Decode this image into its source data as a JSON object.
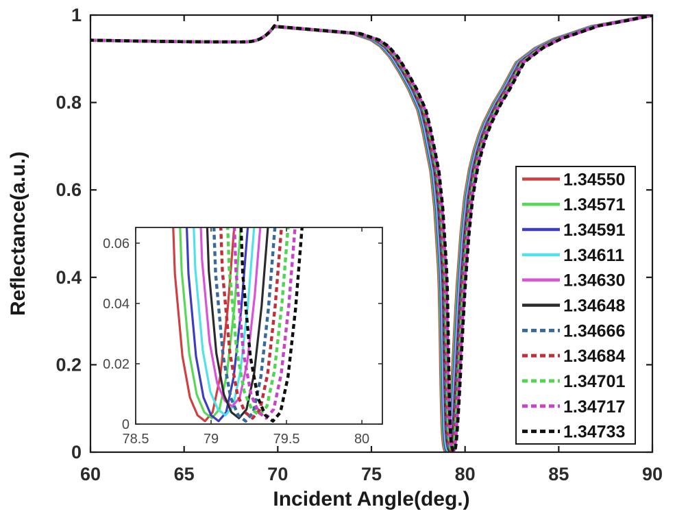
{
  "figure": {
    "background": "#ffffff",
    "axis_color": "#1a1a1a",
    "tick_label_color": "#2b2b2b",
    "inset_label_color": "#474747"
  },
  "chart_data": {
    "type": "line",
    "title": "",
    "xlabel": "Incident Angle(deg.)",
    "ylabel": "Reflectance(a.u.)",
    "xlim": [
      60,
      90
    ],
    "ylim": [
      0,
      1
    ],
    "xticks": [
      "60",
      "65",
      "70",
      "75",
      "80",
      "85",
      "90"
    ],
    "xtick_values": [
      60,
      65,
      70,
      75,
      80,
      85,
      90
    ],
    "yticks": [
      "0",
      "0.2",
      "0.4",
      "0.6",
      "0.8",
      "1"
    ],
    "ytick_values": [
      0,
      0.2,
      0.4,
      0.6,
      0.8,
      1
    ],
    "grid": false,
    "legend_position": "right-middle",
    "series": [
      {
        "name": "1.34550",
        "color": "#cf4141",
        "line_style": "solid",
        "resonance_deg": 78.96,
        "min_reflectance": 0.001
      },
      {
        "name": "1.34571",
        "color": "#57d957",
        "line_style": "solid",
        "resonance_deg": 79.005,
        "min_reflectance": 0.002
      },
      {
        "name": "1.34591",
        "color": "#3b3ec2",
        "line_style": "solid",
        "resonance_deg": 79.05,
        "min_reflectance": 0.001
      },
      {
        "name": "1.34611",
        "color": "#4fe3e8",
        "line_style": "solid",
        "resonance_deg": 79.095,
        "min_reflectance": 0.003
      },
      {
        "name": "1.34630",
        "color": "#da52da",
        "line_style": "solid",
        "resonance_deg": 79.14,
        "min_reflectance": 0.006
      },
      {
        "name": "1.34648",
        "color": "#2b2b2b",
        "line_style": "solid",
        "resonance_deg": 79.185,
        "min_reflectance": 0.002
      },
      {
        "name": "1.34666",
        "color": "#37699c",
        "line_style": "dashed",
        "resonance_deg": 79.23,
        "min_reflectance": 0.001
      },
      {
        "name": "1.34684",
        "color": "#c22f38",
        "line_style": "dashed",
        "resonance_deg": 79.275,
        "min_reflectance": 0.002
      },
      {
        "name": "1.34701",
        "color": "#4fd64f",
        "line_style": "dashed",
        "resonance_deg": 79.32,
        "min_reflectance": 0.003
      },
      {
        "name": "1.34717",
        "color": "#ca41ca",
        "line_style": "dashed",
        "resonance_deg": 79.365,
        "min_reflectance": 0.002
      },
      {
        "name": "1.34733",
        "color": "#101010",
        "line_style": "dashed",
        "resonance_deg": 79.41,
        "min_reflectance": 0.001
      }
    ],
    "curve_model": {
      "baseline_start": 0.9425,
      "baseline_sag": 0.004,
      "sag_end": 68,
      "pre_kink": 0.9385,
      "critical_angle_deg": 69.85,
      "shoulder": 0.977,
      "background_exponent": 3.5,
      "dip_profile": [
        [
          -9.5,
          0.003
        ],
        [
          -5,
          0.02
        ],
        [
          -4,
          0.035
        ],
        [
          -3.5,
          0.05
        ],
        [
          -3,
          0.075
        ],
        [
          -2.5,
          0.11
        ],
        [
          -2,
          0.15
        ],
        [
          -1.75,
          0.175
        ],
        [
          -1.5,
          0.2
        ],
        [
          -1.25,
          0.245
        ],
        [
          -1,
          0.3
        ],
        [
          -0.8,
          0.345
        ],
        [
          -0.6,
          0.43
        ],
        [
          -0.5,
          0.5
        ],
        [
          -0.4,
          0.57
        ],
        [
          -0.35,
          0.63
        ],
        [
          -0.3,
          0.75
        ],
        [
          -0.25,
          0.88
        ],
        [
          -0.2,
          0.95
        ],
        [
          -0.15,
          0.978
        ],
        [
          -0.1,
          0.992
        ],
        [
          -0.05,
          0.998
        ],
        [
          0,
          1
        ],
        [
          0.05,
          0.997
        ],
        [
          0.1,
          0.985
        ],
        [
          0.15,
          0.962
        ],
        [
          0.2,
          0.93
        ],
        [
          0.25,
          0.895
        ],
        [
          0.3,
          0.855
        ],
        [
          0.4,
          0.77
        ],
        [
          0.5,
          0.685
        ],
        [
          0.6,
          0.61
        ],
        [
          0.8,
          0.49
        ],
        [
          1,
          0.405
        ],
        [
          1.25,
          0.34
        ],
        [
          1.5,
          0.295
        ],
        [
          1.75,
          0.26
        ],
        [
          2,
          0.232
        ],
        [
          2.5,
          0.188
        ],
        [
          3,
          0.152
        ],
        [
          3.75,
          0.092
        ],
        [
          4.75,
          0.06
        ],
        [
          5.75,
          0.04
        ],
        [
          7.75,
          0.015
        ],
        [
          10.75,
          0
        ],
        [
          12.5,
          0
        ]
      ]
    },
    "inset": {
      "xlim": [
        78.5,
        80.136
      ],
      "ylim": [
        0,
        0.0652
      ],
      "xticks": [
        "78.5",
        "79",
        "79.5",
        "80"
      ],
      "xtick_values": [
        78.5,
        79,
        79.5,
        80
      ],
      "yticks": [
        "0",
        "0.02",
        "0.04",
        "0.06"
      ],
      "ytick_values": [
        0,
        0.02,
        0.04,
        0.06
      ]
    }
  }
}
